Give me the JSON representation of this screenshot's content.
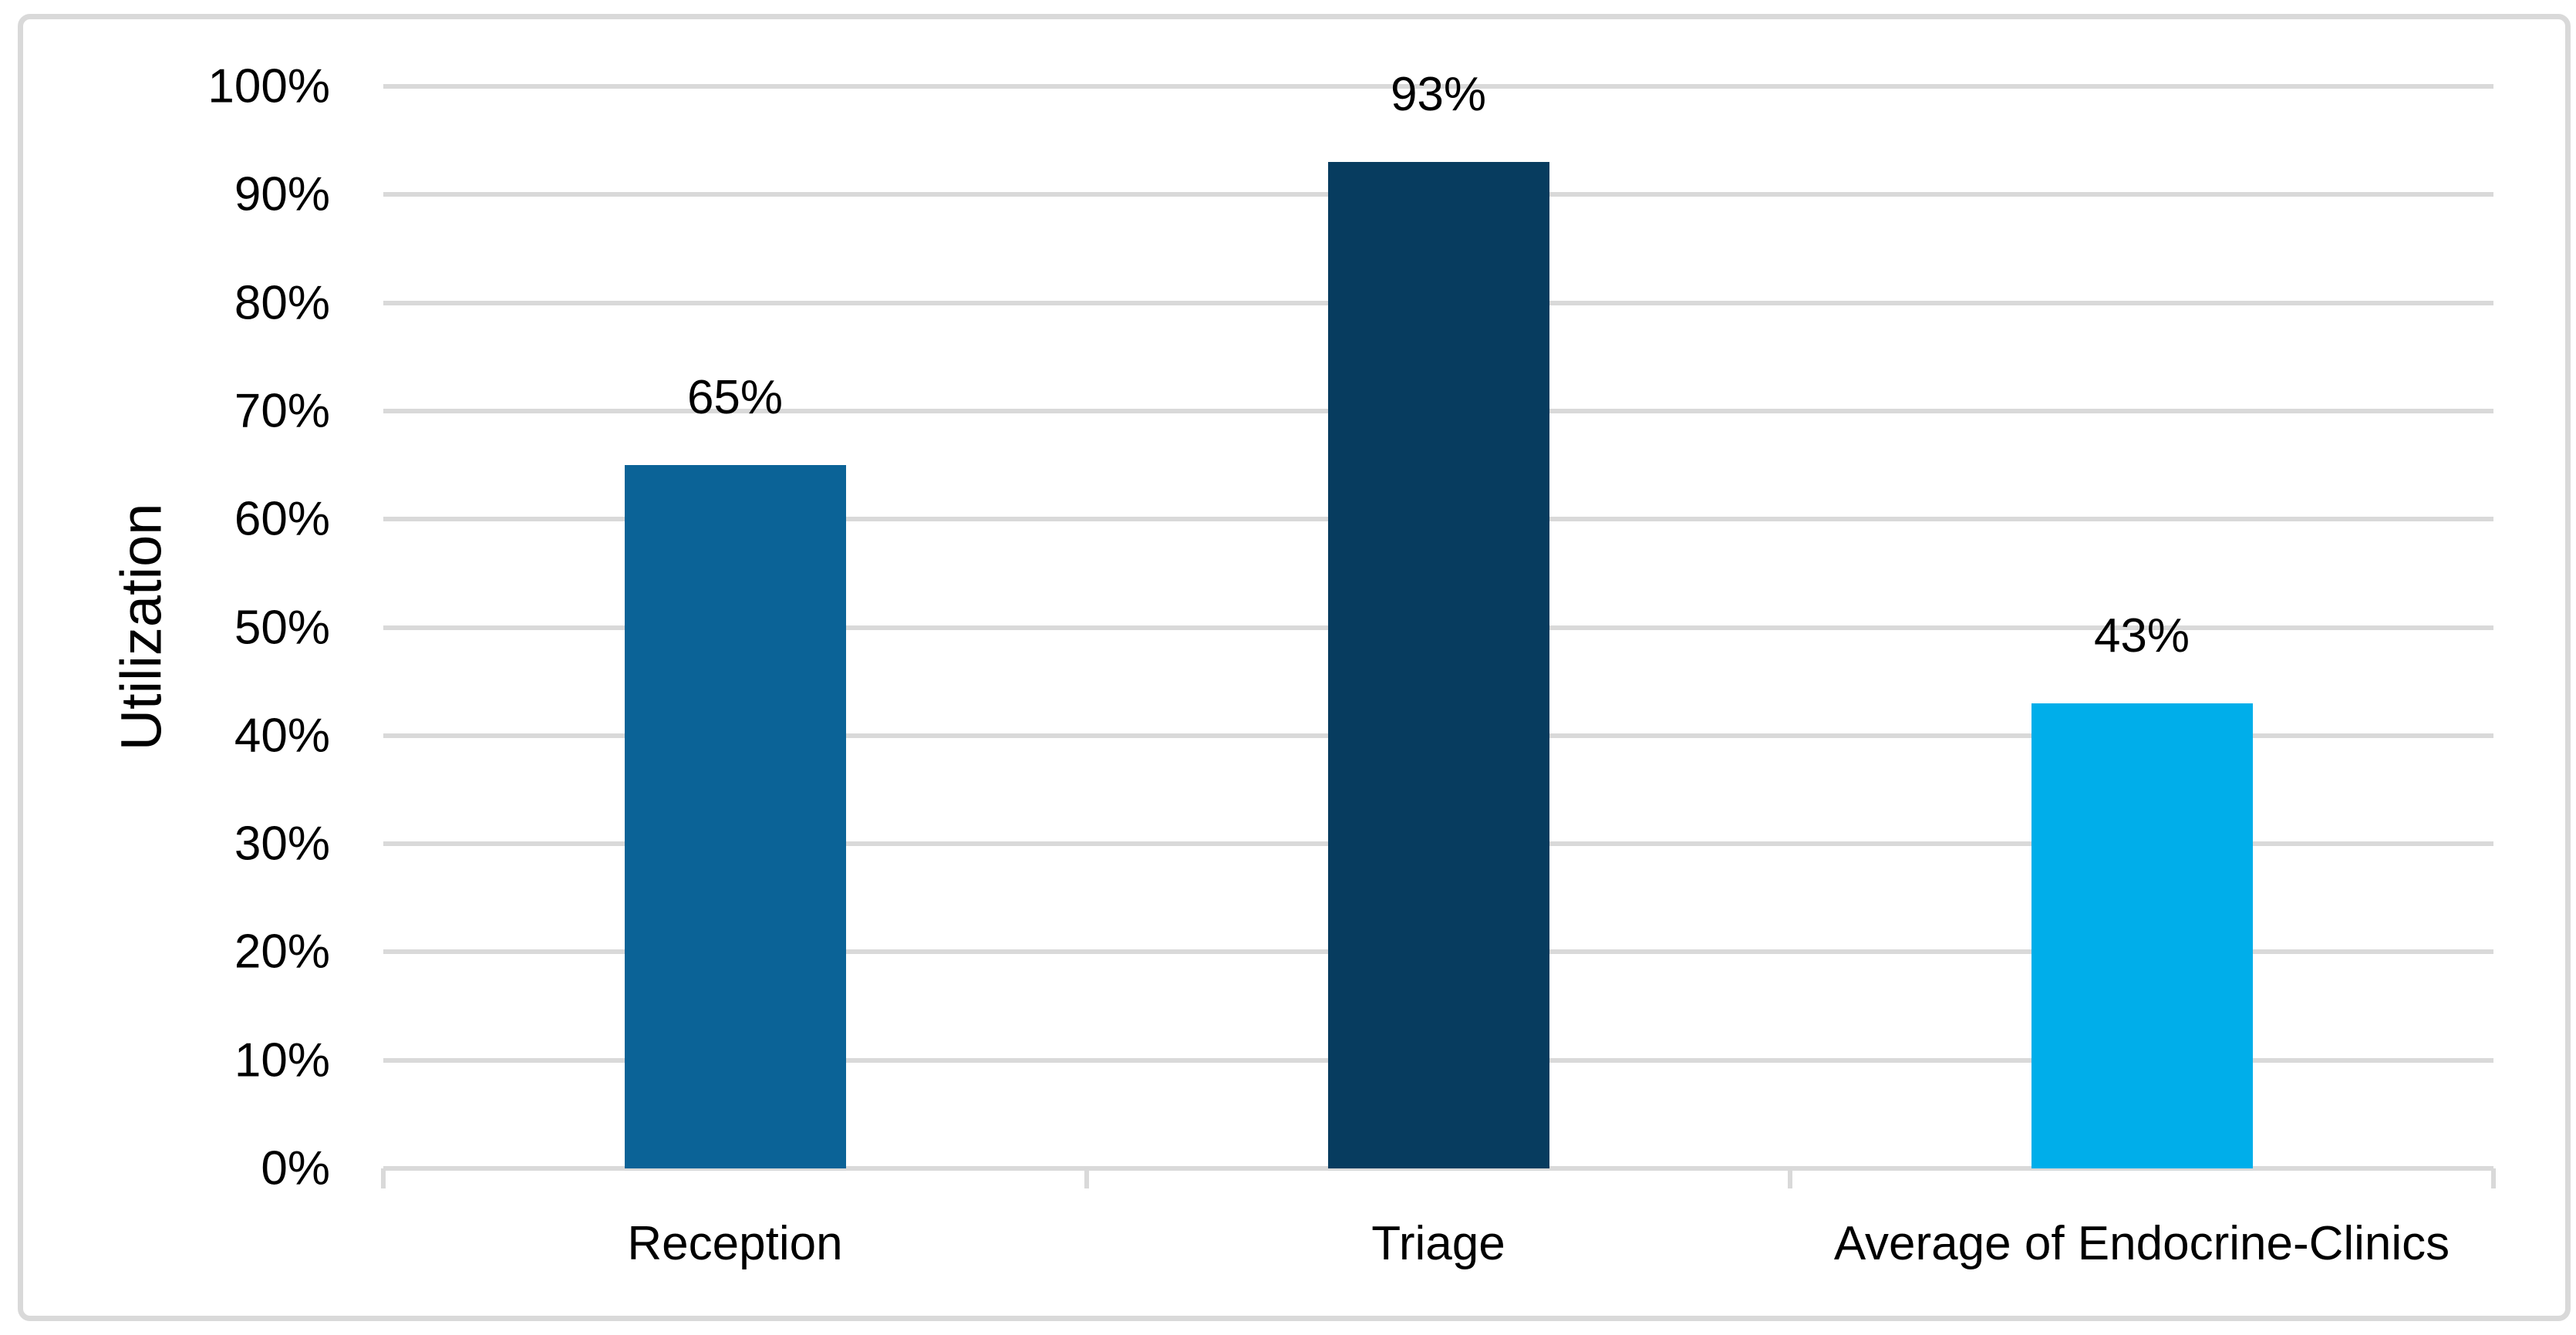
{
  "chart_data": {
    "type": "bar",
    "categories": [
      "Reception",
      "Triage",
      "Average of Endocrine-Clinics"
    ],
    "values": [
      65,
      93,
      43
    ],
    "data_labels": [
      "65%",
      "93%",
      "43%"
    ],
    "title": "",
    "xlabel": "",
    "ylabel": "Utilization",
    "ylim": [
      0,
      100
    ],
    "ytick_step": 10,
    "ytick_labels": [
      "0%",
      "10%",
      "20%",
      "30%",
      "40%",
      "50%",
      "60%",
      "70%",
      "80%",
      "90%",
      "100%"
    ],
    "grid": true,
    "legend": false,
    "bar_colors": [
      "#0B6397",
      "#073C5F",
      "#00AEEA"
    ],
    "gridline_color": "#D9D9D9",
    "axis_color": "#D9D9D9",
    "frame_border_color": "#D9D9D9",
    "text_color": "#000000",
    "background_color": "#FFFFFF"
  }
}
